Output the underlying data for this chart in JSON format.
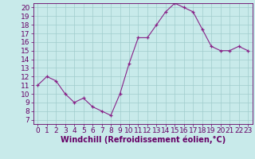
{
  "x": [
    0,
    1,
    2,
    3,
    4,
    5,
    6,
    7,
    8,
    9,
    10,
    11,
    12,
    13,
    14,
    15,
    16,
    17,
    18,
    19,
    20,
    21,
    22,
    23
  ],
  "y": [
    11,
    12,
    11.5,
    10,
    9,
    9.5,
    8.5,
    8,
    7.5,
    10,
    13.5,
    16.5,
    16.5,
    18,
    19.5,
    20.5,
    20,
    19.5,
    17.5,
    15.5,
    15,
    15,
    15.5,
    15
  ],
  "line_color": "#882288",
  "marker_color": "#882288",
  "bg_color": "#c8eaea",
  "grid_color": "#a0cccc",
  "xlabel": "Windchill (Refroidissement éolien,°C)",
  "ylim": [
    6.5,
    20.5
  ],
  "xlim": [
    -0.5,
    23.5
  ],
  "yticks": [
    7,
    8,
    9,
    10,
    11,
    12,
    13,
    14,
    15,
    16,
    17,
    18,
    19,
    20
  ],
  "xticks": [
    0,
    1,
    2,
    3,
    4,
    5,
    6,
    7,
    8,
    9,
    10,
    11,
    12,
    13,
    14,
    15,
    16,
    17,
    18,
    19,
    20,
    21,
    22,
    23
  ],
  "xlabel_fontsize": 7,
  "tick_fontsize": 6.5,
  "text_color": "#660066"
}
